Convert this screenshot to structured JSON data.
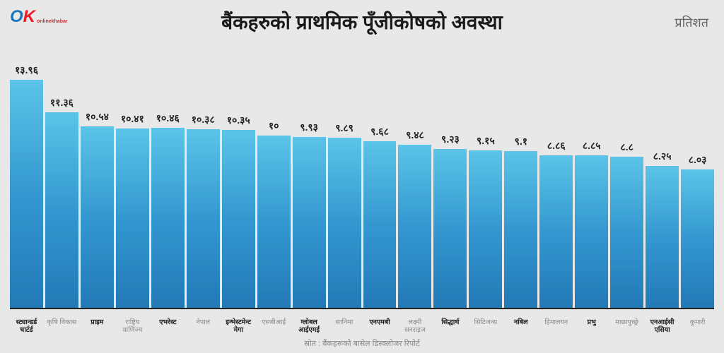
{
  "logo": {
    "letter_o": "O",
    "letter_k": "K",
    "subtext": "onlinekhabar"
  },
  "title": "बैंकहरुको प्राथमिक पूँजीकोषको अवस्था",
  "unit_label": "प्रतिशत",
  "source": "स्रोत : बैंकहरूको बासेल डिस्क्लोजर रिपोर्ट",
  "chart": {
    "type": "bar",
    "ymax": 14.2,
    "bar_gradient": {
      "top": "#5bc4e8",
      "mid": "#3498d0",
      "bottom": "#2279b5"
    },
    "background_color": "#e8e8e8",
    "axis_color": "#222222",
    "value_fontsize": 14,
    "label_fontsize": 9.5,
    "title_fontsize": 28,
    "bars": [
      {
        "label": "स्ट्यान्डर्ड चार्टर्ड",
        "value": 13.96,
        "value_label": "१३.९६",
        "bold": true
      },
      {
        "label": "कृषि विकास",
        "value": 11.36,
        "value_label": "११.३६",
        "bold": false
      },
      {
        "label": "प्राइम",
        "value": 10.54,
        "value_label": "१०.५४",
        "bold": true
      },
      {
        "label": "राष्ट्रिय वाणिज्य",
        "value": 10.41,
        "value_label": "१०.४१",
        "bold": false
      },
      {
        "label": "एभरेस्ट",
        "value": 10.46,
        "value_label": "१०.४६",
        "bold": true
      },
      {
        "label": "नेपाल",
        "value": 10.38,
        "value_label": "१०.३८",
        "bold": false
      },
      {
        "label": "इन्भेस्टमेन्ट मेगा",
        "value": 10.35,
        "value_label": "१०.३५",
        "bold": true
      },
      {
        "label": "एसबीआई",
        "value": 10.0,
        "value_label": "१०",
        "bold": false
      },
      {
        "label": "ग्लोबल आईएमई",
        "value": 9.93,
        "value_label": "९.९३",
        "bold": true
      },
      {
        "label": "सानिमा",
        "value": 9.89,
        "value_label": "९.८९",
        "bold": false
      },
      {
        "label": "एनएमबी",
        "value": 9.68,
        "value_label": "९.६८",
        "bold": true
      },
      {
        "label": "लक्ष्मी सनराइज",
        "value": 9.48,
        "value_label": "९.४८",
        "bold": false
      },
      {
        "label": "सिद्धार्थ",
        "value": 9.23,
        "value_label": "९.२३",
        "bold": true
      },
      {
        "label": "सिटिजन्स",
        "value": 9.15,
        "value_label": "९.१५",
        "bold": false
      },
      {
        "label": "नबिल",
        "value": 9.1,
        "value_label": "९.१",
        "bold": true
      },
      {
        "label": "हिमालयन",
        "value": 8.86,
        "value_label": "८.८६",
        "bold": false
      },
      {
        "label": "प्रभु",
        "value": 8.85,
        "value_label": "८.८५",
        "bold": true
      },
      {
        "label": "माछापुच्छ्रे",
        "value": 8.8,
        "value_label": "८.८",
        "bold": false
      },
      {
        "label": "एनआईसी एसिया",
        "value": 8.25,
        "value_label": "८.२५",
        "bold": true
      },
      {
        "label": "कुमारी",
        "value": 8.03,
        "value_label": "८.०३",
        "bold": false
      }
    ]
  }
}
